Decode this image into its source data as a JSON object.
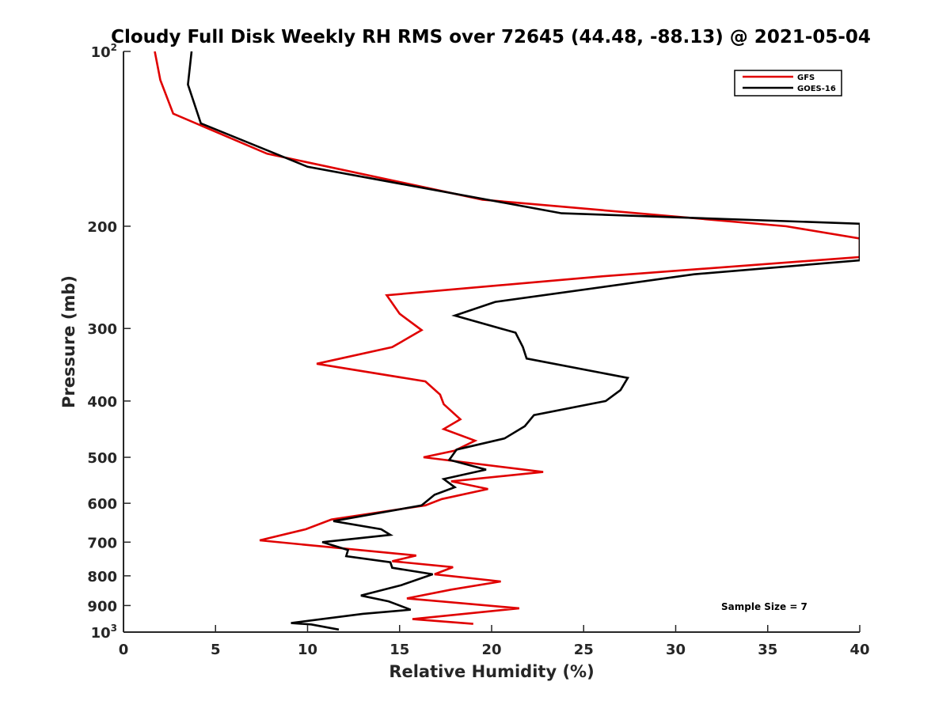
{
  "chart_data": {
    "type": "line",
    "title": "Cloudy Full Disk Weekly RH RMS over 72645 (44.48, -88.13) @ 2021-05-04",
    "xlabel": "Relative Humidity (%)",
    "ylabel": "Pressure (mb)",
    "xlim": [
      0,
      40
    ],
    "ylim": [
      100,
      1000
    ],
    "y_scale": "log",
    "y_reversed": true,
    "grid": false,
    "legend_position": "top-right",
    "x_ticks": [
      0,
      5,
      10,
      15,
      20,
      25,
      30,
      35,
      40
    ],
    "x_tick_labels": [
      "0",
      "5",
      "10",
      "15",
      "20",
      "25",
      "30",
      "35",
      "40"
    ],
    "y_ticks": [
      {
        "value": 100,
        "label": "10",
        "sup": "2"
      },
      {
        "value": 200,
        "label": "200",
        "sup": ""
      },
      {
        "value": 300,
        "label": "300",
        "sup": ""
      },
      {
        "value": 400,
        "label": "400",
        "sup": ""
      },
      {
        "value": 500,
        "label": "500",
        "sup": ""
      },
      {
        "value": 600,
        "label": "600",
        "sup": ""
      },
      {
        "value": 700,
        "label": "700",
        "sup": ""
      },
      {
        "value": 800,
        "label": "800",
        "sup": ""
      },
      {
        "value": 900,
        "label": "900",
        "sup": ""
      },
      {
        "value": 1000,
        "label": "10",
        "sup": "3"
      }
    ],
    "series": [
      {
        "name": "GFS",
        "color": "#e00000",
        "points": [
          [
            1.7,
            100
          ],
          [
            2.0,
            112
          ],
          [
            2.7,
            128
          ],
          [
            7.8,
            150
          ],
          [
            19.5,
            180
          ],
          [
            36,
            200
          ],
          [
            40,
            210
          ],
          [
            40,
            226
          ],
          [
            26,
            244
          ],
          [
            14.3,
            263
          ],
          [
            15.0,
            283
          ],
          [
            16.2,
            302
          ],
          [
            14.6,
            323
          ],
          [
            10.5,
            345
          ],
          [
            16.4,
            370
          ],
          [
            17.2,
            390
          ],
          [
            17.4,
            405
          ],
          [
            18.3,
            430
          ],
          [
            17.4,
            447
          ],
          [
            19.1,
            468
          ],
          [
            18.0,
            487
          ],
          [
            16.3,
            500
          ],
          [
            22.8,
            530
          ],
          [
            17.8,
            550
          ],
          [
            19.8,
            567
          ],
          [
            17.3,
            590
          ],
          [
            16.4,
            605
          ],
          [
            11.3,
            640
          ],
          [
            9.9,
            665
          ],
          [
            7.4,
            695
          ],
          [
            10.8,
            712
          ],
          [
            15.9,
            738
          ],
          [
            14.6,
            755
          ],
          [
            17.9,
            773
          ],
          [
            16.9,
            795
          ],
          [
            20.5,
            818
          ],
          [
            17.8,
            845
          ],
          [
            15.4,
            875
          ],
          [
            21.5,
            910
          ],
          [
            15.7,
            950
          ],
          [
            19.0,
            968
          ]
        ]
      },
      {
        "name": "GOES-16",
        "color": "#000000",
        "points": [
          [
            3.7,
            100
          ],
          [
            3.5,
            114
          ],
          [
            4.2,
            133
          ],
          [
            10.0,
            158
          ],
          [
            23.8,
            190
          ],
          [
            40,
            198
          ],
          [
            40,
            229
          ],
          [
            31,
            242
          ],
          [
            20.2,
            270
          ],
          [
            18.0,
            285
          ],
          [
            21.3,
            305
          ],
          [
            21.7,
            323
          ],
          [
            21.9,
            338
          ],
          [
            27.4,
            365
          ],
          [
            27.0,
            383
          ],
          [
            26.2,
            400
          ],
          [
            22.3,
            423
          ],
          [
            21.8,
            442
          ],
          [
            20.7,
            464
          ],
          [
            18.1,
            485
          ],
          [
            17.7,
            505
          ],
          [
            19.7,
            525
          ],
          [
            17.4,
            545
          ],
          [
            18.0,
            563
          ],
          [
            16.9,
            580
          ],
          [
            16.2,
            605
          ],
          [
            11.4,
            644
          ],
          [
            14.0,
            665
          ],
          [
            14.5,
            680
          ],
          [
            10.8,
            700
          ],
          [
            12.2,
            722
          ],
          [
            12.1,
            740
          ],
          [
            14.5,
            758
          ],
          [
            14.6,
            775
          ],
          [
            16.8,
            795
          ],
          [
            15.1,
            830
          ],
          [
            12.9,
            865
          ],
          [
            14.4,
            885
          ],
          [
            15.6,
            915
          ],
          [
            13.0,
            930
          ],
          [
            9.1,
            965
          ],
          [
            10.2,
            970
          ],
          [
            11.7,
            990
          ]
        ]
      }
    ],
    "annotations": [
      {
        "text": "Sample Size = 7",
        "x": 33.7,
        "y": 905
      }
    ]
  }
}
